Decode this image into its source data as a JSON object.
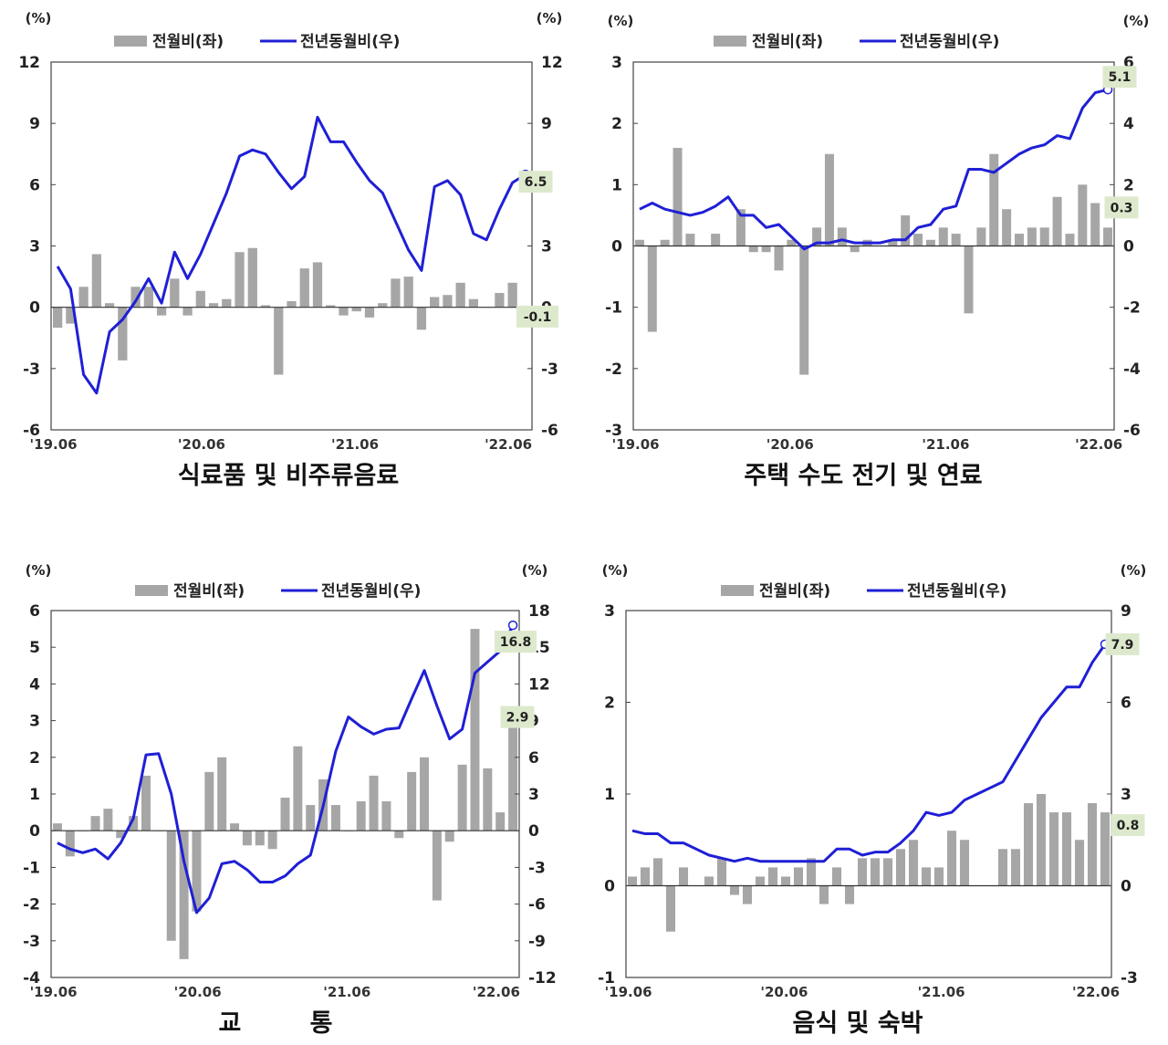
{
  "chart_data": [
    {
      "type": "bar+line",
      "title": "식료품 및 비주류음료",
      "left_unit": "(%)",
      "right_unit": "(%)",
      "legend": {
        "bar": "전월비(좌)",
        "line": "전년동월비(우)"
      },
      "x_ticks": [
        "'19.06",
        "'20.06",
        "'21.06",
        "'22.06"
      ],
      "left_axis": {
        "min": -6,
        "max": 12,
        "step": 3
      },
      "right_axis": {
        "min": -6,
        "max": 12,
        "step": 3
      },
      "bar_color": "#a6a6a6",
      "line_color": "#1f1fd6",
      "mom": [
        -1.0,
        -0.8,
        1.0,
        2.6,
        0.2,
        -2.6,
        1.0,
        1.0,
        -0.4,
        1.4,
        -0.4,
        0.8,
        0.2,
        0.4,
        2.7,
        2.9,
        0.1,
        -3.3,
        0.3,
        1.9,
        2.2,
        0.1,
        -0.4,
        -0.2,
        -0.5,
        0.2,
        1.4,
        1.5,
        -1.1,
        0.5,
        0.6,
        1.2,
        0.4,
        0.0,
        0.7,
        1.2,
        -0.1
      ],
      "yoy": [
        2.0,
        0.9,
        -3.3,
        -4.2,
        -1.2,
        -0.6,
        0.3,
        1.4,
        0.2,
        2.7,
        1.4,
        2.6,
        4.1,
        5.6,
        7.4,
        7.7,
        7.5,
        6.6,
        5.8,
        6.4,
        9.3,
        8.1,
        8.1,
        7.1,
        6.2,
        5.6,
        4.2,
        2.8,
        1.8,
        5.9,
        6.2,
        5.5,
        3.6,
        3.3,
        4.8,
        6.1,
        6.5
      ],
      "labels": {
        "bar_last": "-0.1",
        "line_last": "6.5"
      }
    },
    {
      "type": "bar+line",
      "title": "주택 수도 전기 및 연료",
      "left_unit": "(%)",
      "right_unit": "(%)",
      "legend": {
        "bar": "전월비(좌)",
        "line": "전년동월비(우)"
      },
      "x_ticks": [
        "'19.06",
        "'20.06",
        "'21.06",
        "'22.06"
      ],
      "left_axis": {
        "min": -3,
        "max": 3,
        "step": 1
      },
      "right_axis": {
        "min": -6,
        "max": 6,
        "step": 2
      },
      "bar_color": "#a6a6a6",
      "line_color": "#1f1fd6",
      "mom": [
        0.1,
        -1.4,
        0.1,
        1.6,
        0.2,
        0.0,
        0.2,
        0.0,
        0.6,
        -0.1,
        -0.1,
        -0.4,
        0.1,
        -2.1,
        0.3,
        1.5,
        0.3,
        -0.1,
        0.1,
        0.0,
        0.1,
        0.5,
        0.2,
        0.1,
        0.3,
        0.2,
        -1.1,
        0.3,
        1.5,
        0.6,
        0.2,
        0.3,
        0.3,
        0.8,
        0.2,
        1.0,
        0.7,
        0.3
      ],
      "yoy": [
        1.2,
        1.4,
        1.2,
        1.1,
        1.0,
        1.1,
        1.3,
        1.6,
        1.0,
        1.0,
        0.6,
        0.7,
        0.3,
        -0.1,
        0.1,
        0.1,
        0.2,
        0.1,
        0.1,
        0.1,
        0.2,
        0.2,
        0.6,
        0.7,
        1.2,
        1.3,
        2.5,
        2.5,
        2.4,
        2.7,
        3.0,
        3.2,
        3.3,
        3.6,
        3.5,
        4.5,
        5.0,
        5.1
      ],
      "labels": {
        "bar_last": "0.3",
        "line_last": "5.1"
      }
    },
    {
      "type": "bar+line",
      "title": "교        통",
      "left_unit": "(%)",
      "right_unit": "(%)",
      "legend": {
        "bar": "전월비(좌)",
        "line": "전년동월비(우)"
      },
      "x_ticks": [
        "'19.06",
        "'20.06",
        "'21.06",
        "'22.06"
      ],
      "left_axis": {
        "min": -4,
        "max": 6,
        "step": 1
      },
      "right_axis": {
        "min": -12,
        "max": 18,
        "step": 3
      },
      "bar_color": "#a6a6a6",
      "line_color": "#1f1fd6",
      "mom": [
        0.2,
        -0.7,
        0.0,
        0.4,
        0.6,
        -0.2,
        0.4,
        1.5,
        0.0,
        -3.0,
        -3.5,
        -2.2,
        1.6,
        2.0,
        0.2,
        -0.4,
        -0.4,
        -0.5,
        0.9,
        2.3,
        0.7,
        1.4,
        0.7,
        0.0,
        0.8,
        1.5,
        0.8,
        -0.2,
        1.6,
        2.0,
        -1.9,
        -0.3,
        1.8,
        5.5,
        1.7,
        0.5,
        2.9
      ],
      "yoy": [
        -1.0,
        -1.5,
        -1.8,
        -1.5,
        -2.3,
        -1.0,
        1.0,
        6.2,
        6.3,
        3.0,
        -2.5,
        -6.7,
        -5.5,
        -2.7,
        -2.5,
        -3.2,
        -4.2,
        -4.2,
        -3.7,
        -2.7,
        -2.0,
        2.0,
        6.5,
        9.3,
        8.5,
        7.9,
        8.3,
        8.4,
        10.8,
        13.1,
        10.2,
        7.5,
        8.3,
        12.9,
        13.8,
        14.7,
        16.8
      ],
      "labels": {
        "bar_last": "2.9",
        "line_last": "16.8"
      }
    },
    {
      "type": "bar+line",
      "title": "음식 및 숙박",
      "left_unit": "(%)",
      "right_unit": "(%)",
      "legend": {
        "bar": "전월비(좌)",
        "line": "전년동월비(우)"
      },
      "x_ticks": [
        "'19.06",
        "'20.06",
        "'21.06",
        "'22.06"
      ],
      "left_axis": {
        "min": -1,
        "max": 3,
        "step": 1
      },
      "right_axis": {
        "min": -3,
        "max": 9,
        "step": 3
      },
      "bar_color": "#a6a6a6",
      "line_color": "#1f1fd6",
      "mom": [
        0.1,
        0.2,
        0.3,
        -0.5,
        0.2,
        0.0,
        0.1,
        0.3,
        -0.1,
        -0.2,
        0.1,
        0.2,
        0.1,
        0.2,
        0.3,
        -0.2,
        0.2,
        -0.2,
        0.3,
        0.3,
        0.3,
        0.4,
        0.5,
        0.2,
        0.2,
        0.6,
        0.5,
        0.0,
        0.0,
        0.4,
        0.4,
        0.9,
        1.0,
        0.8,
        0.8,
        0.5,
        0.9,
        0.8
      ],
      "yoy": [
        1.8,
        1.7,
        1.7,
        1.4,
        1.4,
        1.2,
        1.0,
        0.9,
        0.8,
        0.9,
        0.8,
        0.8,
        0.8,
        0.8,
        0.8,
        0.8,
        1.2,
        1.2,
        1.0,
        1.1,
        1.1,
        1.4,
        1.8,
        2.4,
        2.3,
        2.4,
        2.8,
        3.0,
        3.2,
        3.4,
        4.1,
        4.8,
        5.5,
        6.0,
        6.5,
        6.5,
        7.3,
        7.9
      ],
      "labels": {
        "bar_last": "0.8",
        "line_last": "7.9"
      }
    }
  ]
}
